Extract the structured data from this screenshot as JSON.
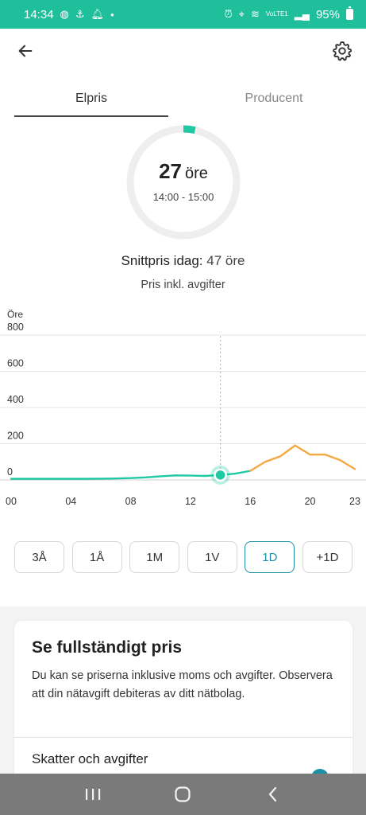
{
  "status": {
    "time": "14:34",
    "battery": "95%",
    "network": "VoLTE1"
  },
  "tabs": {
    "elpris": "Elpris",
    "producent": "Producent"
  },
  "gauge": {
    "number": "27",
    "unit": "öre",
    "time_range": "14:00 - 15:00",
    "fill_fraction": 0.035,
    "accent_color": "#1fc9a3"
  },
  "average": {
    "label": "Snittpris idag:",
    "value": "47 öre"
  },
  "incl_label": "Pris inkl. avgifter",
  "chart_data": {
    "type": "line",
    "ylabel": "Öre",
    "ylim": [
      0,
      800
    ],
    "yticks": [
      "0",
      "200",
      "400",
      "600",
      "800"
    ],
    "xticks": [
      "00",
      "04",
      "08",
      "12",
      "16",
      "20",
      "23"
    ],
    "current_hour": 14,
    "series": [
      {
        "color": "#1fc9a3",
        "x": [
          0,
          1,
          2,
          3,
          4,
          5,
          6,
          7,
          8,
          9,
          10,
          11,
          12,
          13,
          14,
          15,
          16
        ],
        "values": [
          6,
          6,
          6,
          6,
          6,
          6,
          7,
          8,
          10,
          14,
          20,
          25,
          24,
          22,
          27,
          35,
          50
        ]
      },
      {
        "color": "#f5a742",
        "x": [
          16,
          17,
          18,
          19,
          20,
          21,
          22,
          23
        ],
        "values": [
          50,
          100,
          130,
          190,
          140,
          140,
          110,
          60
        ]
      }
    ],
    "grid": true
  },
  "ranges": [
    "3Å",
    "1Å",
    "1M",
    "1V",
    "1D",
    "+1D"
  ],
  "active_range": "1D",
  "card": {
    "title": "Se fullständigt pris",
    "body": "Du kan se priserna inklusive moms och avgifter. Observera att din nätavgift debiteras av ditt nätbolag.",
    "subtitle": "Skatter och avgifter"
  }
}
